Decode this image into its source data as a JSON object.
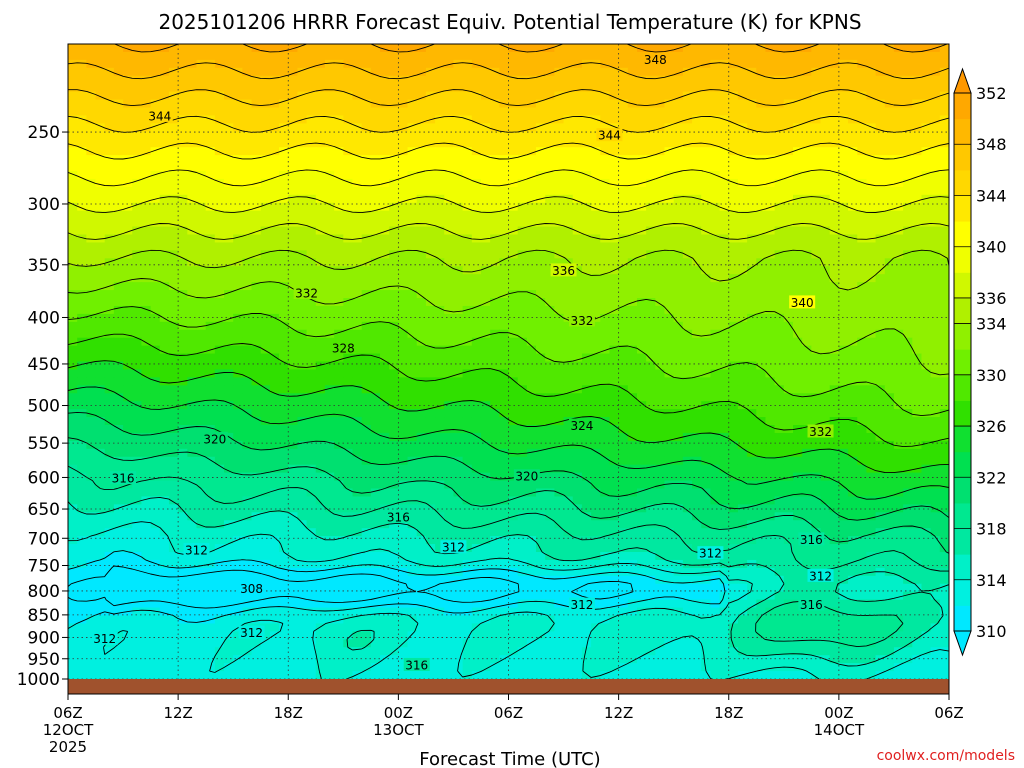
{
  "chart_data": {
    "type": "heatmap",
    "title": "2025101206 HRRR Forecast Equiv. Potential Temperature (K) for KPNS",
    "xlabel": "Forecast Time (UTC)",
    "ylabel": "",
    "credit": "coolwx.com/models",
    "x_range_hours": [
      0,
      48
    ],
    "x_ticks": [
      {
        "hour": 0,
        "labels": [
          "06Z",
          "12OCT",
          "2025"
        ]
      },
      {
        "hour": 6,
        "labels": [
          "12Z"
        ]
      },
      {
        "hour": 12,
        "labels": [
          "18Z"
        ]
      },
      {
        "hour": 18,
        "labels": [
          "00Z",
          "13OCT"
        ]
      },
      {
        "hour": 24,
        "labels": [
          "06Z"
        ]
      },
      {
        "hour": 30,
        "labels": [
          "12Z"
        ]
      },
      {
        "hour": 36,
        "labels": [
          "18Z"
        ]
      },
      {
        "hour": 42,
        "labels": [
          "00Z",
          "14OCT"
        ]
      },
      {
        "hour": 48,
        "labels": [
          "06Z"
        ]
      }
    ],
    "y_axis_pressure_hpa": {
      "range": [
        1000,
        200
      ],
      "scale": "log",
      "ticks": [
        250,
        300,
        350,
        400,
        450,
        500,
        550,
        600,
        650,
        700,
        750,
        800,
        850,
        900,
        950,
        1000
      ]
    },
    "grid": true,
    "colorbar": {
      "levels": [
        310,
        312,
        314,
        316,
        318,
        320,
        322,
        324,
        326,
        328,
        330,
        332,
        334,
        336,
        338,
        340,
        342,
        344,
        346,
        348,
        350,
        352
      ],
      "labels": [
        310,
        314,
        318,
        322,
        326,
        330,
        334,
        336,
        340,
        344,
        348,
        352
      ],
      "colors": [
        "#00e8ff",
        "#00f0e0",
        "#00f0c8",
        "#00e8a0",
        "#00e890",
        "#00e070",
        "#00e050",
        "#10e030",
        "#30e000",
        "#50e800",
        "#70f000",
        "#90f000",
        "#b0f000",
        "#d0f800",
        "#f0ff00",
        "#ffff00",
        "#ffe800",
        "#ffd800",
        "#ffc800",
        "#ffb800",
        "#ffa800",
        "#ff9800"
      ],
      "extend": "both"
    },
    "contour_labels": [
      {
        "value": 348,
        "hour": 32,
        "p": 208
      },
      {
        "value": 344,
        "hour": 5,
        "p": 240
      },
      {
        "value": 344,
        "hour": 29.5,
        "p": 252
      },
      {
        "value": 336,
        "hour": 27,
        "p": 355
      },
      {
        "value": 340,
        "hour": 40,
        "p": 385
      },
      {
        "value": 332,
        "hour": 13,
        "p": 376
      },
      {
        "value": 332,
        "hour": 28,
        "p": 403
      },
      {
        "value": 328,
        "hour": 15,
        "p": 432
      },
      {
        "value": 324,
        "hour": 28,
        "p": 526
      },
      {
        "value": 332,
        "hour": 41,
        "p": 534
      },
      {
        "value": 320,
        "hour": 8,
        "p": 544
      },
      {
        "value": 320,
        "hour": 25,
        "p": 598
      },
      {
        "value": 316,
        "hour": 3,
        "p": 601
      },
      {
        "value": 316,
        "hour": 18,
        "p": 663
      },
      {
        "value": 316,
        "hour": 40.5,
        "p": 702
      },
      {
        "value": 312,
        "hour": 7,
        "p": 721
      },
      {
        "value": 312,
        "hour": 21,
        "p": 716
      },
      {
        "value": 312,
        "hour": 35,
        "p": 727
      },
      {
        "value": 312,
        "hour": 41,
        "p": 770
      },
      {
        "value": 308,
        "hour": 10,
        "p": 795
      },
      {
        "value": 312,
        "hour": 28,
        "p": 828
      },
      {
        "value": 316,
        "hour": 40.5,
        "p": 828
      },
      {
        "value": 312,
        "hour": 10,
        "p": 889
      },
      {
        "value": 312,
        "hour": 2,
        "p": 903
      },
      {
        "value": 316,
        "hour": 19,
        "p": 965
      }
    ]
  }
}
